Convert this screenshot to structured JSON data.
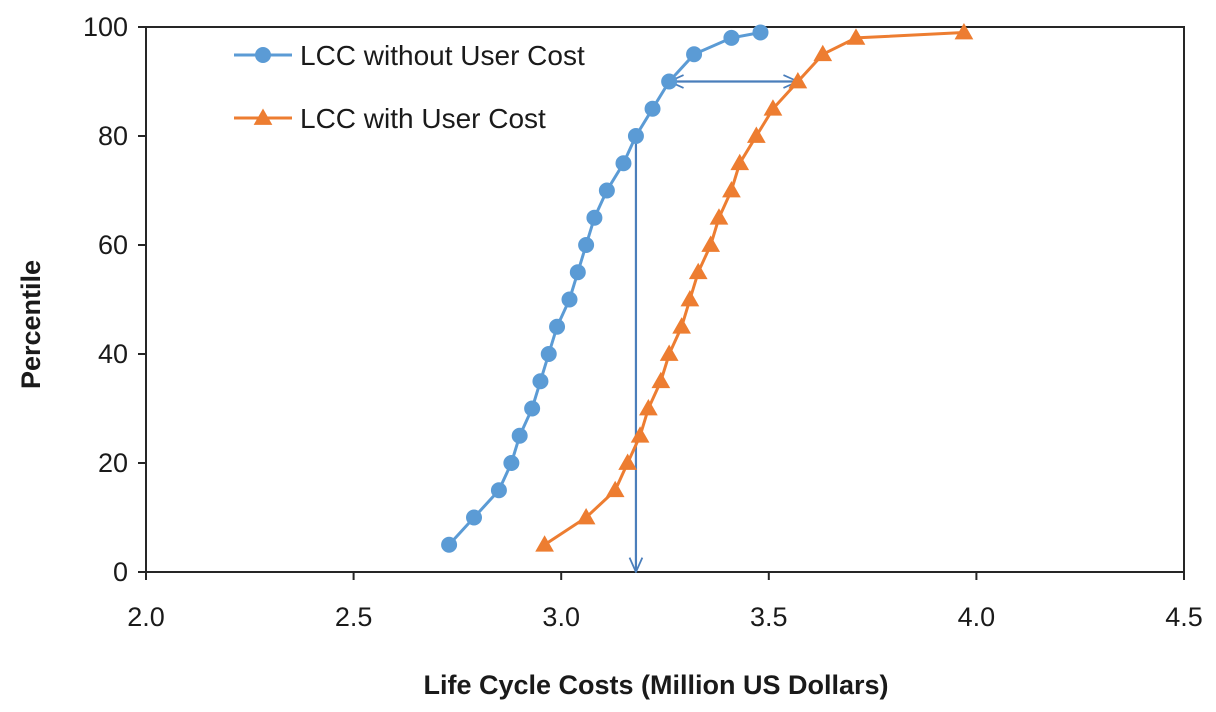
{
  "chart_data": {
    "type": "line",
    "title": "",
    "xlabel": "Life Cycle Costs (Million US Dollars)",
    "ylabel": "Percentile",
    "xlim": [
      2.0,
      4.5
    ],
    "ylim": [
      0,
      100
    ],
    "xticks": [
      "2.0",
      "2.5",
      "3.0",
      "3.5",
      "4.0",
      "4.5"
    ],
    "yticks": [
      "0",
      "20",
      "40",
      "60",
      "80",
      "100"
    ],
    "grid": false,
    "legend_position": "top-left",
    "series": [
      {
        "name": "LCC without User Cost",
        "color": "#5b9bd5",
        "marker": "circle",
        "points": [
          [
            2.73,
            5
          ],
          [
            2.79,
            10
          ],
          [
            2.85,
            15
          ],
          [
            2.88,
            20
          ],
          [
            2.9,
            25
          ],
          [
            2.93,
            30
          ],
          [
            2.95,
            35
          ],
          [
            2.97,
            40
          ],
          [
            2.99,
            45
          ],
          [
            3.02,
            50
          ],
          [
            3.04,
            55
          ],
          [
            3.06,
            60
          ],
          [
            3.08,
            65
          ],
          [
            3.11,
            70
          ],
          [
            3.15,
            75
          ],
          [
            3.18,
            80
          ],
          [
            3.22,
            85
          ],
          [
            3.26,
            90
          ],
          [
            3.32,
            95
          ],
          [
            3.41,
            98
          ],
          [
            3.48,
            99
          ]
        ]
      },
      {
        "name": "LCC with User Cost",
        "color": "#ed7d31",
        "marker": "triangle",
        "points": [
          [
            2.96,
            5
          ],
          [
            3.06,
            10
          ],
          [
            3.13,
            15
          ],
          [
            3.16,
            20
          ],
          [
            3.19,
            25
          ],
          [
            3.21,
            30
          ],
          [
            3.24,
            35
          ],
          [
            3.26,
            40
          ],
          [
            3.29,
            45
          ],
          [
            3.31,
            50
          ],
          [
            3.33,
            55
          ],
          [
            3.36,
            60
          ],
          [
            3.38,
            65
          ],
          [
            3.41,
            70
          ],
          [
            3.43,
            75
          ],
          [
            3.47,
            80
          ],
          [
            3.51,
            85
          ],
          [
            3.57,
            90
          ],
          [
            3.63,
            95
          ],
          [
            3.71,
            98
          ],
          [
            3.97,
            99
          ]
        ]
      }
    ],
    "annotations": [
      {
        "type": "double-arrow",
        "from": [
          3.26,
          90
        ],
        "to": [
          3.57,
          90
        ],
        "color": "#4a7ebb"
      },
      {
        "type": "arrow",
        "from": [
          3.18,
          80
        ],
        "to": [
          3.18,
          0
        ],
        "color": "#4a7ebb"
      }
    ]
  }
}
